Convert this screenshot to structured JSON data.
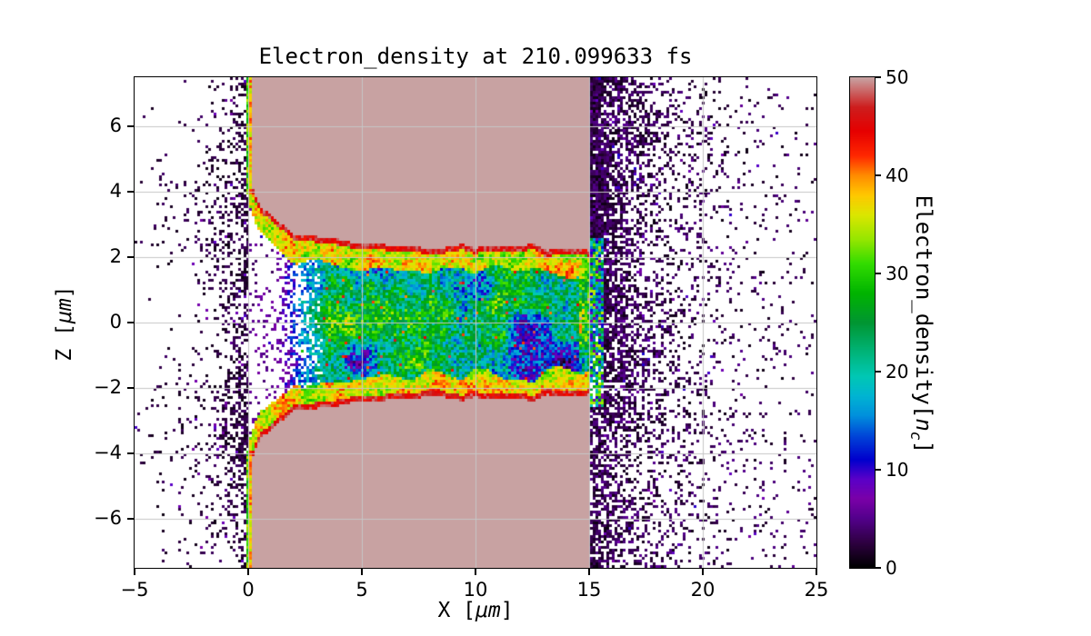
{
  "chart_data": {
    "type": "heatmap",
    "title": "Electron_density at 210.099633 fs",
    "xlabel": "X [μm]",
    "ylabel": "Z [μm]",
    "xlabel_parts": {
      "pre": "X [",
      "unit": "μm",
      "post": "]"
    },
    "ylabel_parts": {
      "pre": "Z [",
      "unit": "μm",
      "post": "]"
    },
    "xlim": [
      -5,
      25
    ],
    "ylim": [
      -7.5,
      7.5
    ],
    "x_ticks": [
      -5,
      0,
      5,
      10,
      15,
      20,
      25
    ],
    "y_ticks": [
      -6,
      -4,
      -2,
      0,
      2,
      4,
      6
    ],
    "grid": true,
    "colors": {
      "background": "#ffffff",
      "frame": "#000000",
      "grid": "#c6c6c6",
      "saturated_density": "#c8a2a2"
    },
    "colorbar": {
      "label": "Electron_density[n_c]",
      "label_parts": {
        "pre": "Electron_density[",
        "var": "n",
        "sub": "c",
        "post": "]"
      },
      "ticks": [
        0,
        10,
        20,
        30,
        40,
        50
      ],
      "range": [
        0,
        50
      ]
    },
    "colormap_stops": [
      [
        0.0,
        "#000000"
      ],
      [
        0.05,
        "#2e0041"
      ],
      [
        0.1,
        "#53008c"
      ],
      [
        0.14,
        "#7a00a8"
      ],
      [
        0.18,
        "#5a00c8"
      ],
      [
        0.22,
        "#0000cd"
      ],
      [
        0.27,
        "#0048d8"
      ],
      [
        0.31,
        "#0090dc"
      ],
      [
        0.35,
        "#00b4d2"
      ],
      [
        0.39,
        "#00c8b4"
      ],
      [
        0.44,
        "#00b478"
      ],
      [
        0.5,
        "#009632"
      ],
      [
        0.56,
        "#00b400"
      ],
      [
        0.62,
        "#32dc00"
      ],
      [
        0.67,
        "#96e600"
      ],
      [
        0.72,
        "#dce600"
      ],
      [
        0.76,
        "#ffc800"
      ],
      [
        0.8,
        "#ff8c00"
      ],
      [
        0.84,
        "#ff2800"
      ],
      [
        0.89,
        "#e60000"
      ],
      [
        0.94,
        "#cd1e1e"
      ],
      [
        1.0,
        "#c8a2a2"
      ]
    ],
    "features": {
      "target_slab": {
        "x_range_um": [
          0,
          15
        ],
        "density_nc": 50,
        "note": "saturated overdense plasma slab rendered rosy-gray (clipped at colorbar max)"
      },
      "bored_channel": {
        "x_range_um": [
          0.2,
          15
        ],
        "half_width_um": 2.3,
        "entrance_half_width_um": 4.2,
        "entrance_taper_x_um": 2.5,
        "interior_density_range_nc": [
          3,
          36
        ],
        "rim_density_range_nc": [
          30,
          50
        ],
        "note": "laser-drilled channel along z=0, green/yellow/red rim, turbulent blue-cyan-green interior with purple voids and red hot spots"
      },
      "front_surface_jet": {
        "x_um": 0,
        "abs_z_range_um": [
          4.2,
          7.5
        ],
        "density_range_nc": [
          26,
          50
        ],
        "note": "thin bright multicolor line at the target front surface"
      },
      "rear_plume": {
        "x_range_um": [
          15,
          25
        ],
        "density_range_nc": [
          0,
          10
        ],
        "note": "expanding sparse dark-purple speckle plume, density decays with x"
      },
      "front_vacuum_speckle": {
        "x_range_um": [
          -5,
          0
        ],
        "density_range_nc": [
          0,
          8
        ],
        "note": "sparse scattered low-density specks in front of the target"
      }
    }
  }
}
